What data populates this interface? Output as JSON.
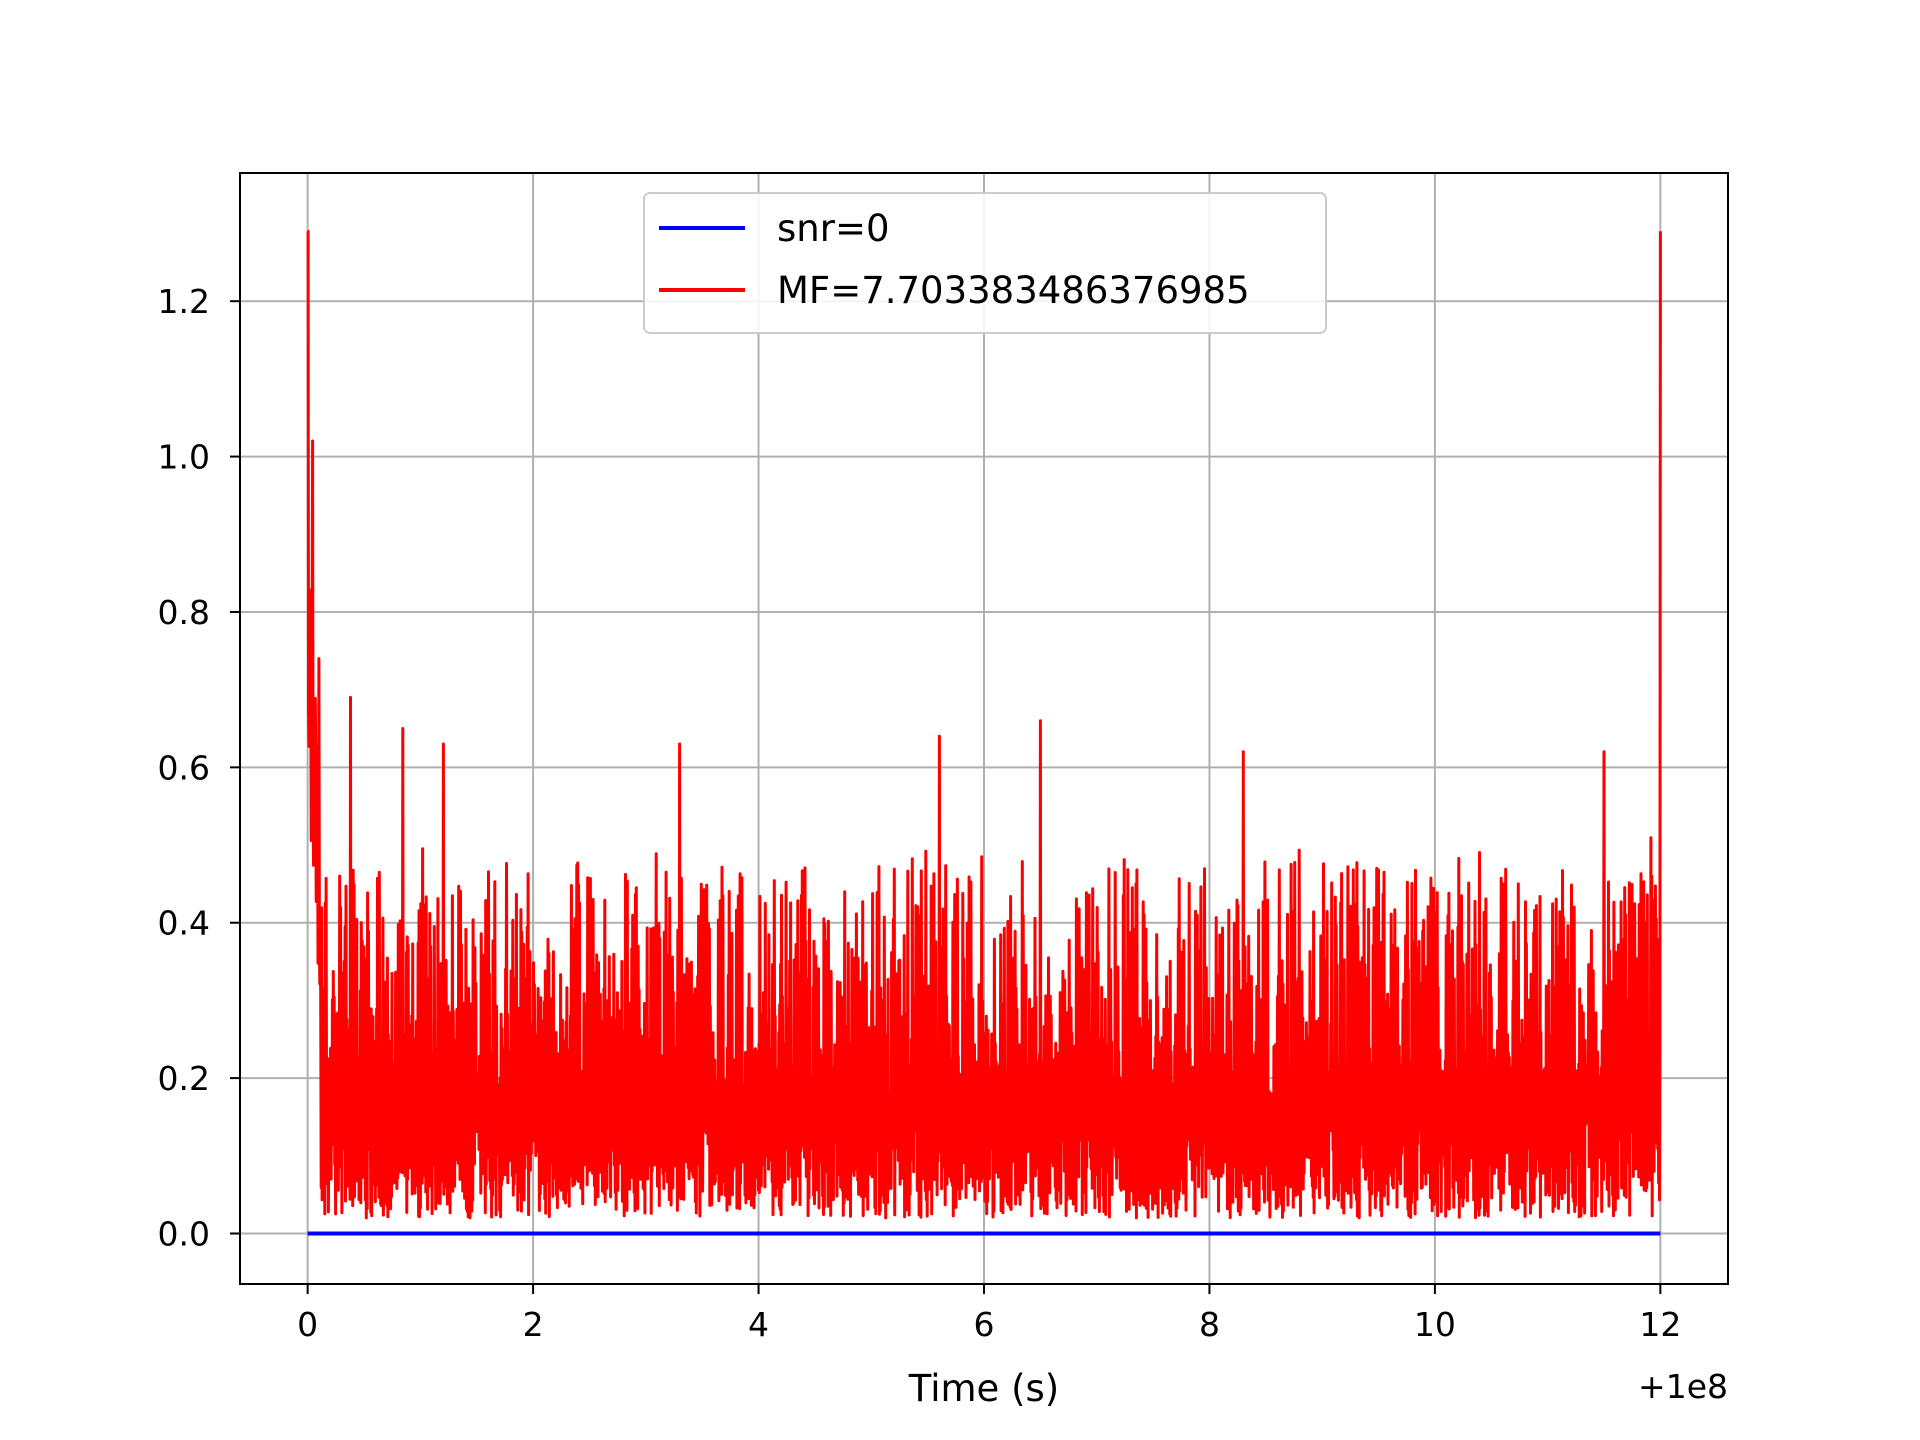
{
  "chart_data": {
    "type": "line",
    "title": "",
    "xlabel": "Time (s)",
    "ylabel": "",
    "x_offset_label": "+1e8",
    "xlim": [
      -0.6,
      12.6
    ],
    "ylim": [
      -0.065,
      1.365
    ],
    "x_ticks": [
      0,
      2,
      4,
      6,
      8,
      10,
      12
    ],
    "x_tick_labels": [
      "0",
      "2",
      "4",
      "6",
      "8",
      "10",
      "12"
    ],
    "y_ticks": [
      0.0,
      0.2,
      0.4,
      0.6,
      0.8,
      1.0,
      1.2
    ],
    "y_tick_labels": [
      "0.0",
      "0.2",
      "0.4",
      "0.6",
      "0.8",
      "1.0",
      "1.2"
    ],
    "grid": true,
    "legend_position": "upper center",
    "series": [
      {
        "name": "snr=0",
        "color": "#0000ff",
        "x_range": [
          0,
          12
        ],
        "values": [
          0.0,
          0.0
        ]
      },
      {
        "name": "MF=7.703383486376985",
        "color": "#ff0000",
        "x_range": [
          0,
          12
        ],
        "peaks": [
          {
            "x": 0.0,
            "y": 1.29
          },
          {
            "x": 0.04,
            "y": 1.02
          },
          {
            "x": 0.1,
            "y": 0.74
          },
          {
            "x": 0.38,
            "y": 0.69
          },
          {
            "x": 0.84,
            "y": 0.65
          },
          {
            "x": 1.2,
            "y": 0.63
          },
          {
            "x": 3.3,
            "y": 0.63
          },
          {
            "x": 5.6,
            "y": 0.64
          },
          {
            "x": 6.5,
            "y": 0.66
          },
          {
            "x": 8.3,
            "y": 0.62
          },
          {
            "x": 11.5,
            "y": 0.62
          },
          {
            "x": 12.0,
            "y": 1.29
          }
        ],
        "typical_range": [
          0.02,
          0.45
        ]
      }
    ]
  }
}
